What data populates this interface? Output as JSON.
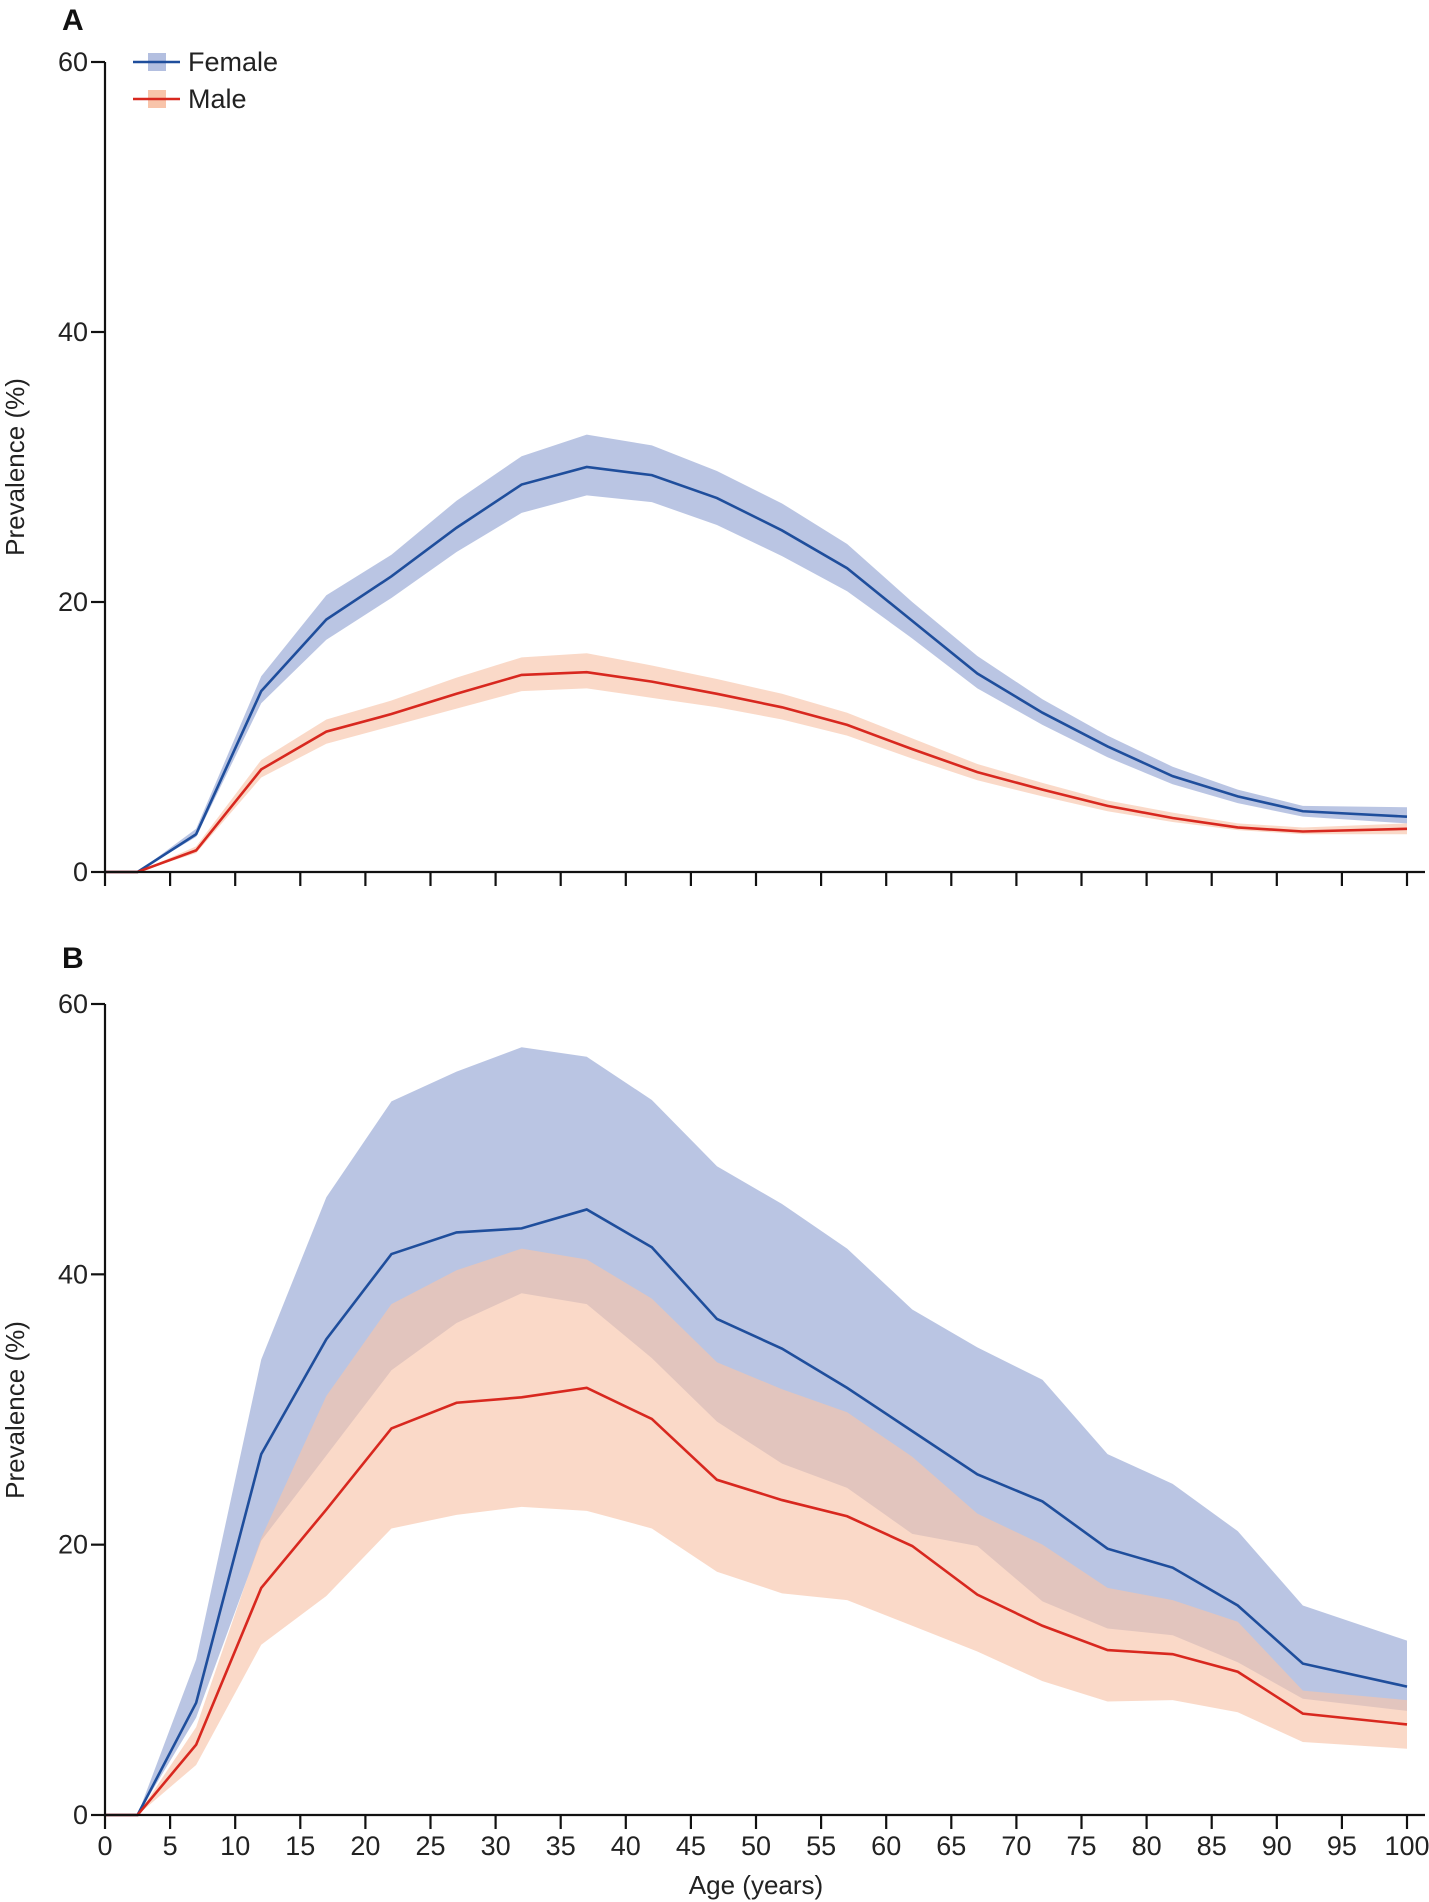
{
  "colors": {
    "female_line": "#1f4e9c",
    "female_band": "#b3bfe0",
    "male_line": "#d8281f",
    "male_band": "#f8c4aa"
  },
  "legend": {
    "female": "Female",
    "male": "Male",
    "placement": "top-left"
  },
  "x_axis_label": "Age (years)",
  "chart_data": [
    {
      "type": "line",
      "panel": "A",
      "ylabel": "Prevalence (%)",
      "xlabel": "",
      "xlim": [
        0,
        100
      ],
      "ylim": [
        0,
        60
      ],
      "xticks": [
        0,
        5,
        10,
        15,
        20,
        25,
        30,
        35,
        40,
        45,
        50,
        55,
        60,
        65,
        70,
        75,
        80,
        85,
        90,
        95,
        100
      ],
      "yticks": [
        0,
        20,
        40,
        60
      ],
      "x": [
        0,
        2.5,
        7,
        12,
        17,
        22,
        27,
        32,
        37,
        42,
        47,
        52,
        57,
        62,
        67,
        72,
        77,
        82,
        87,
        92,
        100
      ],
      "series": [
        {
          "name": "Female",
          "values": [
            0,
            0,
            2.8,
            13.4,
            18.7,
            21.9,
            25.5,
            28.7,
            30.0,
            29.4,
            27.7,
            25.3,
            22.5,
            18.6,
            14.7,
            11.8,
            9.3,
            7.1,
            5.6,
            4.5,
            4.1
          ],
          "upper": [
            0,
            0,
            3.2,
            14.5,
            20.5,
            23.5,
            27.5,
            30.8,
            32.4,
            31.6,
            29.7,
            27.3,
            24.3,
            20.0,
            16.0,
            12.8,
            10.1,
            7.8,
            6.1,
            4.9,
            4.8
          ],
          "lower": [
            0,
            0,
            2.6,
            12.5,
            17.2,
            20.3,
            23.7,
            26.6,
            27.9,
            27.4,
            25.7,
            23.4,
            20.8,
            17.3,
            13.6,
            10.9,
            8.5,
            6.5,
            5.1,
            4.1,
            3.6
          ]
        },
        {
          "name": "Male",
          "values": [
            0,
            0,
            1.6,
            7.6,
            10.4,
            11.7,
            13.2,
            14.6,
            14.8,
            14.1,
            13.2,
            12.2,
            10.9,
            9.1,
            7.4,
            6.1,
            4.9,
            4.0,
            3.3,
            3.0,
            3.2
          ],
          "upper": [
            0,
            0,
            1.9,
            8.3,
            11.3,
            12.7,
            14.4,
            15.9,
            16.2,
            15.3,
            14.3,
            13.2,
            11.8,
            9.9,
            8.0,
            6.6,
            5.3,
            4.4,
            3.6,
            3.3,
            3.6
          ],
          "lower": [
            0,
            0,
            1.4,
            7.0,
            9.5,
            10.8,
            12.1,
            13.4,
            13.6,
            12.9,
            12.2,
            11.3,
            10.1,
            8.4,
            6.8,
            5.6,
            4.5,
            3.7,
            3.1,
            2.8,
            2.8
          ]
        }
      ]
    },
    {
      "type": "line",
      "panel": "B",
      "ylabel": "Prevalence (%)",
      "xlabel": "Age (years)",
      "xlim": [
        0,
        100
      ],
      "ylim": [
        0,
        60
      ],
      "xticks": [
        0,
        5,
        10,
        15,
        20,
        25,
        30,
        35,
        40,
        45,
        50,
        55,
        60,
        65,
        70,
        75,
        80,
        85,
        90,
        95,
        100
      ],
      "yticks": [
        0,
        20,
        40,
        60
      ],
      "x": [
        0,
        2.5,
        7,
        12,
        17,
        22,
        27,
        32,
        37,
        42,
        47,
        52,
        57,
        62,
        67,
        72,
        77,
        82,
        87,
        92,
        100
      ],
      "series": [
        {
          "name": "Female",
          "values": [
            0,
            0,
            8.3,
            26.7,
            35.2,
            41.5,
            43.1,
            43.4,
            44.8,
            42.0,
            36.7,
            34.5,
            31.6,
            28.4,
            25.2,
            23.2,
            19.7,
            18.3,
            15.5,
            11.2,
            9.5
          ],
          "upper": [
            0,
            0,
            11.5,
            33.7,
            45.7,
            52.8,
            55.0,
            56.8,
            56.1,
            52.9,
            48.0,
            45.2,
            41.9,
            37.4,
            34.6,
            32.2,
            26.7,
            24.5,
            21.0,
            15.5,
            12.9
          ],
          "lower": [
            0,
            0,
            7.2,
            20.3,
            26.6,
            32.9,
            36.4,
            38.6,
            37.8,
            33.8,
            29.1,
            26.0,
            24.2,
            20.8,
            19.9,
            15.8,
            13.8,
            13.3,
            11.3,
            8.6,
            7.7
          ]
        },
        {
          "name": "Male",
          "values": [
            0,
            0,
            5.2,
            16.8,
            22.6,
            28.6,
            30.5,
            30.9,
            31.6,
            29.3,
            24.8,
            23.3,
            22.1,
            19.9,
            16.3,
            14.0,
            12.2,
            11.9,
            10.6,
            7.5,
            6.7
          ],
          "upper": [
            0,
            0,
            6.5,
            20.5,
            31.0,
            37.8,
            40.3,
            41.9,
            41.1,
            38.2,
            33.5,
            31.5,
            29.8,
            26.5,
            22.3,
            20.0,
            16.8,
            15.9,
            14.3,
            9.2,
            8.5
          ],
          "lower": [
            0,
            0,
            3.7,
            12.6,
            16.2,
            21.2,
            22.2,
            22.8,
            22.5,
            21.2,
            18.0,
            16.4,
            15.9,
            14.0,
            12.1,
            9.9,
            8.4,
            8.5,
            7.6,
            5.4,
            4.9
          ]
        }
      ]
    }
  ]
}
